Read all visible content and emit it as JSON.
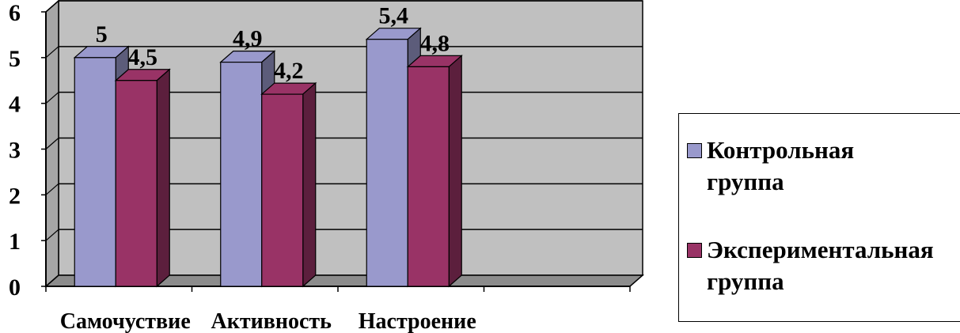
{
  "chart_data": {
    "type": "bar",
    "categories": [
      "Самочуствие",
      "Активность",
      "Настроение"
    ],
    "series": [
      {
        "name": "Контрольная группа",
        "values": [
          5,
          4.9,
          5.4
        ],
        "labels": [
          "5",
          "4,9",
          "5,4"
        ],
        "color": "#9999CC"
      },
      {
        "name": "Экспериментальная группа",
        "values": [
          4.5,
          4.2,
          4.8
        ],
        "labels": [
          "4,5",
          "4,2",
          "4,8"
        ],
        "color": "#993366"
      }
    ],
    "yticks": [
      "0",
      "1",
      "2",
      "3",
      "4",
      "5",
      "6"
    ],
    "ylim": [
      0,
      6
    ],
    "grid": true,
    "legend_position": "right",
    "title": "",
    "xlabel": "",
    "ylabel": ""
  },
  "legend": {
    "items": [
      {
        "line1": "Контрольная",
        "line2": "группа"
      },
      {
        "line1": "Экспериментальная",
        "line2": "группа"
      }
    ]
  }
}
